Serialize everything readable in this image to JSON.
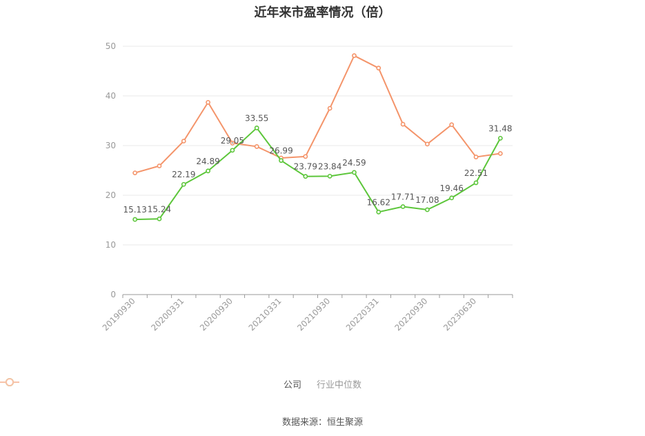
{
  "chart_data": {
    "type": "line",
    "title": "近年来市盈率情况（倍）",
    "xlabel": "",
    "ylabel": "",
    "ylim": [
      0,
      50
    ],
    "yticks": [
      0,
      10,
      20,
      30,
      40,
      50
    ],
    "x_tick_labels": [
      "20190930",
      "20200331",
      "20200930",
      "20210331",
      "20210930",
      "20220331",
      "20220930",
      "20230630"
    ],
    "point_count": 16,
    "series": [
      {
        "name": "公司",
        "color": "#5cc63a",
        "values": [
          15.13,
          15.24,
          22.19,
          24.89,
          29.05,
          33.55,
          26.99,
          23.79,
          23.84,
          24.59,
          16.62,
          17.71,
          17.08,
          19.46,
          22.51,
          31.48
        ],
        "labels": [
          "15.13",
          "15.24",
          "22.19",
          "24.89",
          "29.05",
          "33.55",
          "26.99",
          "23.79",
          "23.84",
          "24.59",
          "16.62",
          "17.71",
          "17.08",
          "19.46",
          "22.51",
          "31.48"
        ]
      },
      {
        "name": "行业中位数",
        "color": "#f4946a",
        "values": [
          24.5,
          25.9,
          30.9,
          38.7,
          30.5,
          29.8,
          27.5,
          27.8,
          37.5,
          48.1,
          45.6,
          34.3,
          30.3,
          34.2,
          27.7,
          28.4
        ]
      }
    ],
    "legend_position": "bottom",
    "grid": true
  },
  "source_text": "数据来源：恒生聚源"
}
